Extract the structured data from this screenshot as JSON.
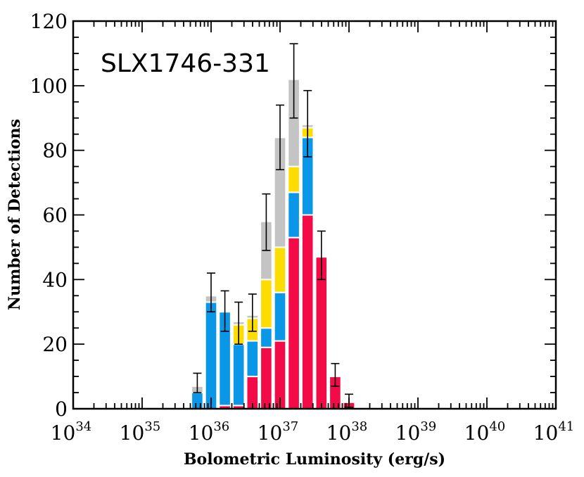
{
  "chart_data": {
    "type": "bar",
    "stacked": true,
    "annotation": "SLX1746-331",
    "xlabel": "Bolometric Luminosity (erg/s)",
    "ylabel": "Number of Detections",
    "x_scale": "log",
    "xlim_exponent": [
      34,
      41
    ],
    "ylim": [
      0,
      120
    ],
    "x_ticks": [
      {
        "base": "10",
        "exp": "34"
      },
      {
        "base": "10",
        "exp": "35"
      },
      {
        "base": "10",
        "exp": "36"
      },
      {
        "base": "10",
        "exp": "37"
      },
      {
        "base": "10",
        "exp": "38"
      },
      {
        "base": "10",
        "exp": "39"
      },
      {
        "base": "10",
        "exp": "40"
      },
      {
        "base": "10",
        "exp": "41"
      }
    ],
    "y_ticks": [
      "0",
      "20",
      "40",
      "60",
      "80",
      "100",
      "120"
    ],
    "bin_width_dex": 0.2,
    "bin_centers_log10": [
      35.8,
      36.0,
      36.2,
      36.4,
      36.6,
      36.8,
      37.0,
      37.2,
      37.4,
      37.6,
      37.8,
      38.0,
      38.2
    ],
    "colors": {
      "red": "#f30b48",
      "blue": "#0b97e8",
      "yellow": "#fddc02",
      "gray": "#c4c4c4",
      "axis": "#000000"
    },
    "series": [
      {
        "color_key": "red",
        "values": [
          0,
          0,
          1,
          1,
          10,
          19,
          21,
          53,
          60,
          47,
          10,
          2,
          0
        ]
      },
      {
        "color_key": "blue",
        "values": [
          5,
          33,
          29,
          19,
          11,
          6,
          15,
          14,
          24,
          0,
          0,
          0,
          0
        ]
      },
      {
        "color_key": "yellow",
        "values": [
          0,
          0,
          0,
          6,
          7,
          15,
          14,
          8,
          3,
          0,
          0,
          0,
          0
        ]
      },
      {
        "color_key": "gray",
        "values": [
          2,
          2,
          0,
          1,
          1,
          18,
          34,
          27,
          1,
          0,
          0,
          0,
          0
        ]
      }
    ],
    "error_bars": [
      {
        "center": 35.8,
        "low": 5,
        "high": 11
      },
      {
        "center": 36.0,
        "low": 30,
        "high": 42
      },
      {
        "center": 36.2,
        "low": 24,
        "high": 36.5
      },
      {
        "center": 36.4,
        "low": 20,
        "high": 33
      },
      {
        "center": 36.6,
        "low": 24,
        "high": 35.5
      },
      {
        "center": 36.8,
        "low": 49,
        "high": 66.5
      },
      {
        "center": 37.0,
        "low": 74,
        "high": 94
      },
      {
        "center": 37.2,
        "low": 90,
        "high": 113
      },
      {
        "center": 37.4,
        "low": 78,
        "high": 98.5
      },
      {
        "center": 37.6,
        "low": 40,
        "high": 55
      },
      {
        "center": 37.8,
        "low": 7,
        "high": 14
      },
      {
        "center": 38.0,
        "low": 0.5,
        "high": 4.5
      }
    ]
  }
}
